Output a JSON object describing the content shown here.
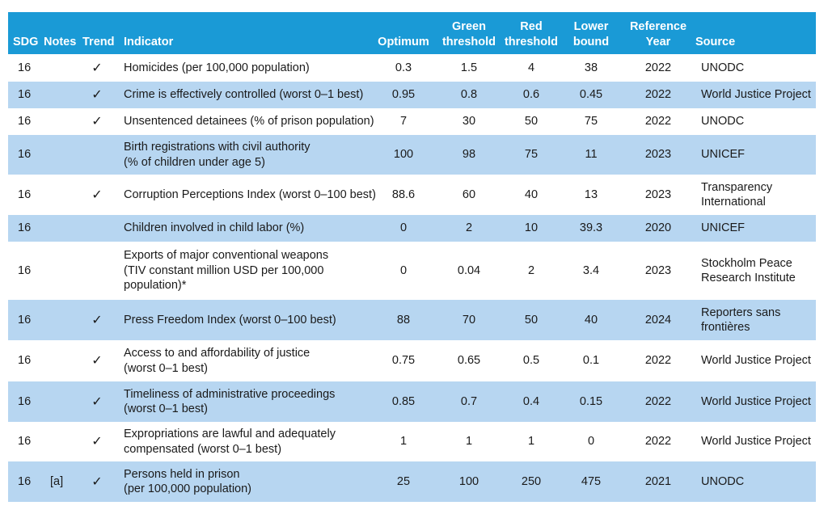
{
  "header": {
    "sdg": "SDG",
    "notes": "Notes",
    "trend": "Trend",
    "indicator": "Indicator",
    "optimum": "Optimum",
    "green_line1": "Green",
    "green_line2": "threshold",
    "red_line1": "Red",
    "red_line2": "threshold",
    "lower_line1": "Lower",
    "lower_line2": "bound",
    "ref_line1": "Reference",
    "ref_line2": "Year",
    "source": "Source"
  },
  "rows": [
    {
      "sdg": "16",
      "notes": "",
      "trend": "✓",
      "indicator": "Homicides (per 100,000 population)",
      "optimum": "0.3",
      "green": "1.5",
      "red": "4",
      "lower": "38",
      "year": "2022",
      "source": "UNODC"
    },
    {
      "sdg": "16",
      "notes": "",
      "trend": "✓",
      "indicator": "Crime is effectively controlled (worst 0–1 best)",
      "optimum": "0.95",
      "green": "0.8",
      "red": "0.6",
      "lower": "0.45",
      "year": "2022",
      "source": "World Justice Project"
    },
    {
      "sdg": "16",
      "notes": "",
      "trend": "✓",
      "indicator": "Unsentenced detainees (% of prison population)",
      "optimum": "7",
      "green": "30",
      "red": "50",
      "lower": "75",
      "year": "2022",
      "source": "UNODC"
    },
    {
      "sdg": "16",
      "notes": "",
      "trend": "",
      "indicator": "Birth registrations with civil authority\n(% of children under age 5)",
      "optimum": "100",
      "green": "98",
      "red": "75",
      "lower": "11",
      "year": "2023",
      "source": "UNICEF"
    },
    {
      "sdg": "16",
      "notes": "",
      "trend": "✓",
      "indicator": "Corruption Perceptions Index (worst 0–100 best)",
      "optimum": "88.6",
      "green": "60",
      "red": "40",
      "lower": "13",
      "year": "2023",
      "source": "Transparency\nInternational"
    },
    {
      "sdg": "16",
      "notes": "",
      "trend": "",
      "indicator": "Children involved in child labor (%)",
      "optimum": "0",
      "green": "2",
      "red": "10",
      "lower": "39.3",
      "year": "2020",
      "source": "UNICEF"
    },
    {
      "sdg": "16",
      "notes": "",
      "trend": "",
      "indicator": "Exports of major conventional weapons\n(TIV constant million USD per 100,000\npopulation)*",
      "optimum": "0",
      "green": "0.04",
      "red": "2",
      "lower": "3.4",
      "year": "2023",
      "source": "Stockholm Peace\nResearch Institute"
    },
    {
      "sdg": "16",
      "notes": "",
      "trend": "✓",
      "indicator": "Press Freedom Index (worst 0–100 best)",
      "optimum": "88",
      "green": "70",
      "red": "50",
      "lower": "40",
      "year": "2024",
      "source": "Reporters sans\nfrontières"
    },
    {
      "sdg": "16",
      "notes": "",
      "trend": "✓",
      "indicator": "Access to and affordability of justice\n(worst 0–1 best)",
      "optimum": "0.75",
      "green": "0.65",
      "red": "0.5",
      "lower": "0.1",
      "year": "2022",
      "source": "World Justice Project"
    },
    {
      "sdg": "16",
      "notes": "",
      "trend": "✓",
      "indicator": "Timeliness of administrative proceedings\n(worst 0–1 best)",
      "optimum": "0.85",
      "green": "0.7",
      "red": "0.4",
      "lower": "0.15",
      "year": "2022",
      "source": "World Justice Project"
    },
    {
      "sdg": "16",
      "notes": "",
      "trend": "✓",
      "indicator": "Expropriations are lawful and adequately\ncompensated (worst 0–1 best)",
      "optimum": "1",
      "green": "1",
      "red": "1",
      "lower": "0",
      "year": "2022",
      "source": "World Justice Project"
    },
    {
      "sdg": "16",
      "notes": "[a]",
      "trend": "✓",
      "indicator": "Persons held in prison\n(per 100,000 population)",
      "optimum": "25",
      "green": "100",
      "red": "250",
      "lower": "475",
      "year": "2021",
      "source": "UNODC"
    }
  ]
}
